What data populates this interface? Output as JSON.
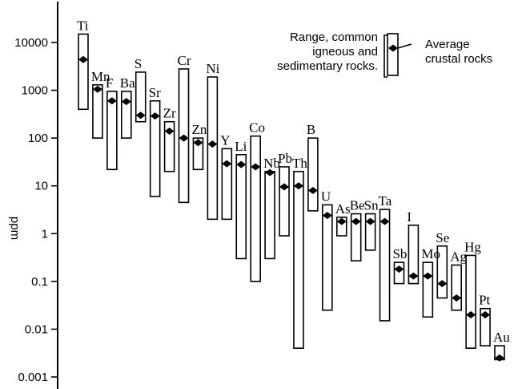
{
  "chart_data": {
    "type": "range-bar",
    "ylabel": "ppm",
    "yscale": "log",
    "ylim": [
      0.001,
      30000
    ],
    "yticks": [
      {
        "value": 10000,
        "label": "10000"
      },
      {
        "value": 1000,
        "label": "1000"
      },
      {
        "value": 100,
        "label": "100"
      },
      {
        "value": 10,
        "label": "10"
      },
      {
        "value": 1,
        "label": "1"
      },
      {
        "value": 0.1,
        "label": "0.1"
      },
      {
        "value": 0.01,
        "label": "0.01"
      },
      {
        "value": 0.001,
        "label": "0.001"
      }
    ],
    "legend": {
      "range_label": "Range, common igneous and sedimentary rocks.",
      "range_lines": [
        "Range, common",
        "igneous and",
        "sedimentary rocks."
      ],
      "average_label": "Average crustal rocks",
      "average_lines": [
        "Average",
        "crustal rocks"
      ]
    },
    "series": [
      {
        "element": "Ti",
        "low": 400,
        "high": 15000,
        "average": 4400
      },
      {
        "element": "Mn",
        "low": 100,
        "high": 1300,
        "average": 1050
      },
      {
        "element": "F",
        "low": 22,
        "high": 950,
        "average": 600
      },
      {
        "element": "Ba",
        "low": 100,
        "high": 950,
        "average": 580
      },
      {
        "element": "S",
        "low": 220,
        "high": 2400,
        "average": 300
      },
      {
        "element": "Sr",
        "low": 6,
        "high": 600,
        "average": 290
      },
      {
        "element": "Zr",
        "low": 20,
        "high": 220,
        "average": 140
      },
      {
        "element": "Cr",
        "low": 4.5,
        "high": 2800,
        "average": 100
      },
      {
        "element": "Zn",
        "low": 22,
        "high": 100,
        "average": 80
      },
      {
        "element": "Ni",
        "low": 2,
        "high": 1900,
        "average": 75
      },
      {
        "element": "Y",
        "low": 2,
        "high": 60,
        "average": 29
      },
      {
        "element": "Li",
        "low": 0.3,
        "high": 45,
        "average": 28
      },
      {
        "element": "Co",
        "low": 0.1,
        "high": 110,
        "average": 25
      },
      {
        "element": "Nb",
        "low": 0.3,
        "high": 20,
        "average": 19
      },
      {
        "element": "Pb",
        "low": 0.9,
        "high": 25,
        "average": 9.5
      },
      {
        "element": "Th",
        "low": 0.004,
        "high": 20,
        "average": 10
      },
      {
        "element": "B",
        "low": 3,
        "high": 100,
        "average": 8
      },
      {
        "element": "U",
        "low": 0.025,
        "high": 4,
        "average": 2.4
      },
      {
        "element": "As",
        "low": 0.9,
        "high": 2.2,
        "average": 1.8
      },
      {
        "element": "Be",
        "low": 0.27,
        "high": 2.6,
        "average": 1.8
      },
      {
        "element": "Sn",
        "low": 0.45,
        "high": 2.6,
        "average": 1.8
      },
      {
        "element": "Ta",
        "low": 0.015,
        "high": 3.2,
        "average": 1.8
      },
      {
        "element": "Sb",
        "low": 0.09,
        "high": 0.25,
        "average": 0.18
      },
      {
        "element": "I",
        "low": 0.09,
        "high": 1.5,
        "average": 0.13
      },
      {
        "element": "Mo",
        "low": 0.018,
        "high": 0.25,
        "average": 0.13
      },
      {
        "element": "Se",
        "low": 0.045,
        "high": 0.55,
        "average": 0.09
      },
      {
        "element": "Ag",
        "low": 0.025,
        "high": 0.22,
        "average": 0.045
      },
      {
        "element": "Hg",
        "low": 0.004,
        "high": 0.35,
        "average": 0.02
      },
      {
        "element": "Pt",
        "low": 0.0045,
        "high": 0.027,
        "average": 0.02
      },
      {
        "element": "Au",
        "low": 0.0023,
        "high": 0.0045,
        "average": 0.0025
      }
    ]
  }
}
